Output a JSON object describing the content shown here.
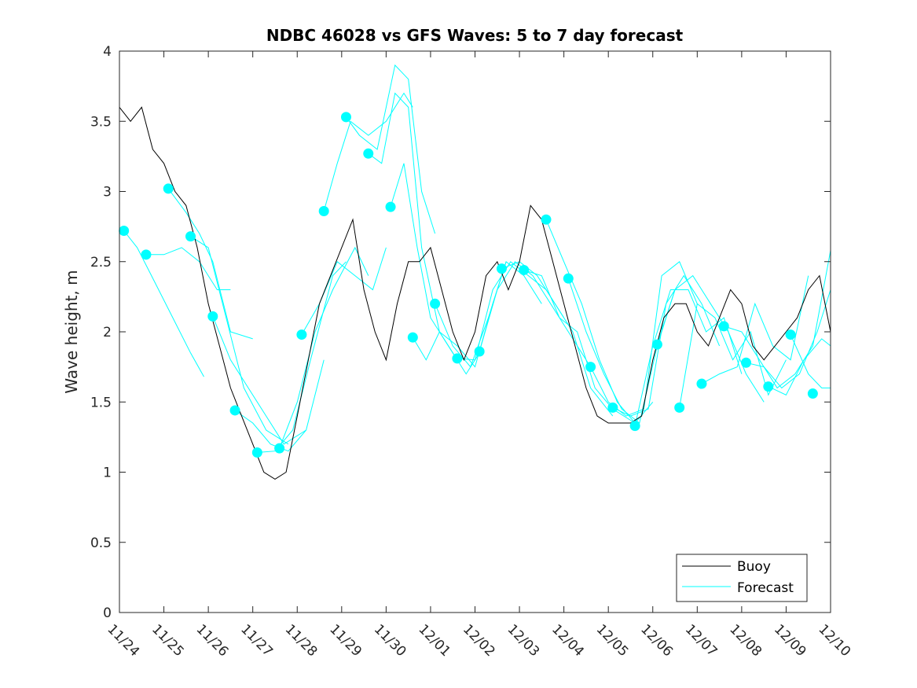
{
  "chart_data": {
    "type": "line",
    "title": "NDBC 46028 vs GFS Waves: 5 to 7 day forecast",
    "xlabel": "",
    "ylabel": "Wave height, m",
    "xlim": [
      0,
      16
    ],
    "ylim": [
      0,
      4
    ],
    "x_ticks": [
      0,
      1,
      2,
      3,
      4,
      5,
      6,
      7,
      8,
      9,
      10,
      11,
      12,
      13,
      14,
      15,
      16
    ],
    "x_tick_labels": [
      "11/24",
      "11/25",
      "11/26",
      "11/27",
      "11/28",
      "11/29",
      "11/30",
      "12/01",
      "12/02",
      "12/03",
      "12/04",
      "12/05",
      "12/06",
      "12/07",
      "12/08",
      "12/09",
      "12/10"
    ],
    "y_ticks": [
      0,
      0.5,
      1,
      1.5,
      2,
      2.5,
      3,
      3.5,
      4
    ],
    "y_tick_labels": [
      "0",
      "0.5",
      "1",
      "1.5",
      "2",
      "2.5",
      "3",
      "3.5",
      "4"
    ],
    "legend": {
      "location": "bottom-right",
      "entries": [
        "Buoy",
        "Forecast"
      ]
    },
    "colors": {
      "buoy": "#000000",
      "forecast": "#00ffff",
      "axes": "#262626"
    },
    "series": [
      {
        "name": "Buoy",
        "x": [
          0,
          0.25,
          0.5,
          0.75,
          1,
          1.25,
          1.5,
          1.75,
          2,
          2.25,
          2.5,
          2.75,
          3,
          3.25,
          3.5,
          3.75,
          4,
          4.25,
          4.5,
          4.75,
          5,
          5.25,
          5.5,
          5.75,
          6,
          6.25,
          6.5,
          6.75,
          7,
          7.25,
          7.5,
          7.75,
          8,
          8.25,
          8.5,
          8.75,
          9,
          9.25,
          9.5,
          9.75,
          10,
          10.25,
          10.5,
          10.75,
          11,
          11.25,
          11.5,
          11.75,
          12,
          12.25,
          12.5,
          12.75,
          13,
          13.25,
          13.5,
          13.75,
          14,
          14.25,
          14.5,
          14.75,
          15,
          15.25,
          15.5,
          15.75,
          16
        ],
        "y": [
          3.6,
          3.5,
          3.6,
          3.3,
          3.2,
          3.0,
          2.9,
          2.6,
          2.2,
          1.9,
          1.6,
          1.4,
          1.2,
          1.0,
          0.95,
          1.0,
          1.4,
          1.8,
          2.2,
          2.4,
          2.6,
          2.8,
          2.3,
          2.0,
          1.8,
          2.2,
          2.5,
          2.5,
          2.6,
          2.3,
          2.0,
          1.8,
          2.0,
          2.4,
          2.5,
          2.3,
          2.5,
          2.9,
          2.8,
          2.5,
          2.2,
          1.9,
          1.6,
          1.4,
          1.35,
          1.35,
          1.35,
          1.4,
          1.8,
          2.1,
          2.2,
          2.2,
          2.0,
          1.9,
          2.1,
          2.3,
          2.2,
          1.9,
          1.8,
          1.9,
          2.0,
          2.1,
          2.3,
          2.4,
          2.0
        ]
      },
      {
        "name": "Forecast",
        "runs": [
          {
            "x": [
              0.1,
              0.4,
              0.8,
              1.2,
              1.6,
              1.9
            ],
            "y": [
              2.72,
              2.6,
              2.35,
              2.1,
              1.85,
              1.68
            ]
          },
          {
            "x": [
              0.6,
              1.0,
              1.4,
              1.8,
              2.2,
              2.5
            ],
            "y": [
              2.55,
              2.55,
              2.6,
              2.5,
              2.3,
              2.3
            ]
          },
          {
            "x": [
              1.1,
              1.5,
              1.8,
              2.1,
              2.5,
              3.0
            ],
            "y": [
              3.02,
              2.85,
              2.7,
              2.5,
              2.0,
              1.95
            ]
          },
          {
            "x": [
              1.6,
              2.0,
              2.4,
              2.8,
              3.3,
              3.8
            ],
            "y": [
              2.68,
              2.6,
              2.1,
              1.6,
              1.3,
              1.2
            ]
          },
          {
            "x": [
              2.1,
              2.5,
              2.9,
              3.3,
              3.7,
              4.2
            ],
            "y": [
              2.11,
              1.8,
              1.6,
              1.4,
              1.2,
              1.3
            ]
          },
          {
            "x": [
              2.6,
              3.0,
              3.4,
              3.8,
              4.2,
              4.6
            ],
            "y": [
              1.44,
              1.35,
              1.2,
              1.15,
              1.3,
              1.8
            ]
          },
          {
            "x": [
              3.1,
              3.5,
              3.9,
              4.3,
              4.8,
              5.1
            ],
            "y": [
              1.14,
              1.15,
              1.3,
              1.8,
              2.4,
              2.5
            ]
          },
          {
            "x": [
              3.6,
              4.0,
              4.4,
              4.8,
              5.3,
              5.6
            ],
            "y": [
              1.17,
              1.5,
              2.0,
              2.3,
              2.6,
              2.4
            ]
          },
          {
            "x": [
              4.1,
              4.5,
              4.9,
              5.3,
              5.7,
              6.0
            ],
            "y": [
              1.98,
              2.2,
              2.5,
              2.4,
              2.3,
              2.6
            ]
          },
          {
            "x": [
              4.6,
              4.9,
              5.2,
              5.6,
              6.0,
              6.4,
              6.6
            ],
            "y": [
              2.86,
              3.2,
              3.5,
              3.4,
              3.5,
              3.7,
              3.6
            ]
          },
          {
            "x": [
              5.1,
              5.4,
              5.8,
              6.2,
              6.5,
              6.8,
              7.1
            ],
            "y": [
              3.53,
              3.4,
              3.3,
              3.9,
              3.8,
              3.0,
              2.7
            ]
          },
          {
            "x": [
              5.6,
              5.9,
              6.2,
              6.5,
              6.8,
              7.2,
              7.6
            ],
            "y": [
              3.27,
              3.2,
              3.7,
              3.6,
              2.6,
              2.0,
              1.8
            ]
          },
          {
            "x": [
              6.1,
              6.4,
              6.7,
              7.0,
              7.4,
              7.8,
              8.1
            ],
            "y": [
              2.89,
              3.2,
              2.6,
              2.1,
              1.9,
              1.7,
              1.85
            ]
          },
          {
            "x": [
              6.6,
              6.9,
              7.2,
              7.6,
              8.0,
              8.4,
              8.7
            ],
            "y": [
              1.96,
              1.8,
              2.0,
              1.9,
              1.75,
              2.2,
              2.5
            ]
          },
          {
            "x": [
              7.1,
              7.5,
              7.9,
              8.3,
              8.7,
              9.1,
              9.5
            ],
            "y": [
              2.2,
              1.9,
              1.75,
              2.1,
              2.5,
              2.4,
              2.2
            ]
          },
          {
            "x": [
              7.6,
              8.0,
              8.4,
              8.8,
              9.2,
              9.6,
              10.0
            ],
            "y": [
              1.81,
              1.8,
              2.3,
              2.5,
              2.4,
              2.3,
              2.1
            ]
          },
          {
            "x": [
              8.1,
              8.5,
              8.9,
              9.3,
              9.7,
              10.1,
              10.6
            ],
            "y": [
              1.86,
              2.3,
              2.5,
              2.4,
              2.2,
              2.0,
              1.75
            ]
          },
          {
            "x": [
              8.6,
              9.0,
              9.4,
              9.8,
              10.2,
              10.6,
              11.1
            ],
            "y": [
              2.45,
              2.5,
              2.4,
              2.2,
              2.0,
              1.6,
              1.4
            ]
          },
          {
            "x": [
              9.1,
              9.5,
              9.9,
              10.3,
              10.7,
              11.1,
              11.6
            ],
            "y": [
              2.44,
              2.4,
              2.1,
              2.0,
              1.6,
              1.45,
              1.35
            ]
          },
          {
            "x": [
              9.6,
              10.0,
              10.4,
              10.8,
              11.2,
              11.6,
              12.0
            ],
            "y": [
              2.8,
              2.5,
              2.2,
              1.8,
              1.5,
              1.35,
              1.5
            ]
          },
          {
            "x": [
              10.1,
              10.5,
              10.9,
              11.3,
              11.7,
              12.1,
              12.5
            ],
            "y": [
              2.38,
              2.0,
              1.7,
              1.45,
              1.35,
              1.9,
              2.3
            ]
          },
          {
            "x": [
              10.6,
              11.0,
              11.4,
              11.8,
              12.2,
              12.6,
              13.0
            ],
            "y": [
              1.75,
              1.5,
              1.4,
              1.45,
              2.4,
              2.5,
              2.2
            ]
          },
          {
            "x": [
              11.1,
              11.5,
              11.9,
              12.3,
              12.7,
              13.1,
              13.5
            ],
            "y": [
              1.46,
              1.4,
              1.45,
              2.2,
              2.4,
              2.2,
              1.9
            ]
          },
          {
            "x": [
              11.6,
              12.0,
              12.4,
              12.8,
              13.2,
              13.6,
              14.0
            ],
            "y": [
              1.33,
              1.9,
              2.3,
              2.3,
              2.0,
              2.1,
              1.7
            ]
          },
          {
            "x": [
              12.1,
              12.5,
              12.9,
              13.3,
              13.7,
              14.1,
              14.5
            ],
            "y": [
              1.91,
              2.3,
              2.4,
              2.2,
              2.0,
              1.7,
              1.5
            ]
          },
          {
            "x": [
              12.6,
              13.0,
              13.4,
              13.8,
              14.2,
              14.6,
              15.0
            ],
            "y": [
              1.46,
              2.2,
              2.1,
              1.8,
              2.0,
              1.55,
              1.8
            ]
          },
          {
            "x": [
              13.1,
              13.5,
              13.9,
              14.3,
              14.7,
              15.1,
              15.5
            ],
            "y": [
              1.63,
              1.7,
              1.75,
              2.2,
              1.9,
              1.8,
              2.4
            ]
          },
          {
            "x": [
              13.6,
              14.0,
              14.4,
              14.8,
              15.2,
              15.6,
              16.0
            ],
            "y": [
              2.04,
              2.0,
              1.8,
              1.6,
              1.7,
              1.9,
              2.58
            ]
          },
          {
            "x": [
              14.1,
              14.5,
              14.9,
              15.3,
              15.7,
              16.0
            ],
            "y": [
              1.78,
              1.75,
              1.6,
              1.7,
              2.0,
              2.3
            ]
          },
          {
            "x": [
              14.6,
              15.0,
              15.4,
              15.8,
              16.0
            ],
            "y": [
              1.61,
              1.55,
              1.8,
              1.95,
              1.9
            ]
          },
          {
            "x": [
              15.1,
              15.5,
              15.8,
              16.0
            ],
            "y": [
              1.98,
              1.7,
              1.6,
              1.6
            ]
          }
        ],
        "markers": {
          "x": [
            0.1,
            0.6,
            1.1,
            1.6,
            2.1,
            2.6,
            3.1,
            3.6,
            4.1,
            4.6,
            5.1,
            5.6,
            6.1,
            6.6,
            7.1,
            7.6,
            8.1,
            8.6,
            9.1,
            9.6,
            10.1,
            10.6,
            11.1,
            11.6,
            12.1,
            12.6,
            13.1,
            13.6,
            14.1,
            14.6,
            15.1,
            15.6
          ],
          "y": [
            2.72,
            2.55,
            3.02,
            2.68,
            2.11,
            1.44,
            1.14,
            1.17,
            1.98,
            2.86,
            3.53,
            3.27,
            2.89,
            1.96,
            2.2,
            1.81,
            1.86,
            2.45,
            2.44,
            2.8,
            2.38,
            1.75,
            1.46,
            1.33,
            1.91,
            1.46,
            1.63,
            2.04,
            1.78,
            1.61,
            1.98,
            1.56
          ]
        }
      }
    ]
  }
}
